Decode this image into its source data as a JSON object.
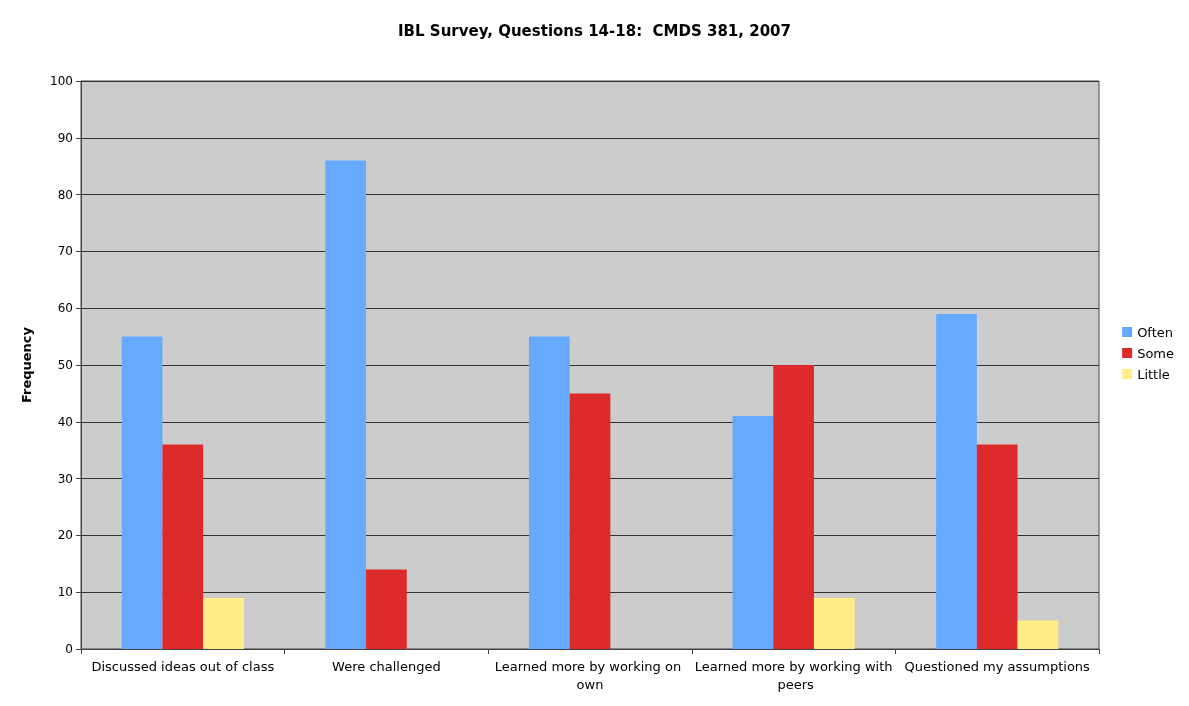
{
  "chart_data": {
    "type": "bar",
    "title": "IBL Survey, Questions 14-18:  CMDS 381, 2007",
    "ylabel": "Frequency",
    "categories": [
      "Discussed ideas out of class",
      "Were challenged",
      "Learned more by working on own",
      "Learned more by working with peers",
      "Questioned my assumptions"
    ],
    "series": [
      {
        "name": "Often",
        "color": "#66aaff",
        "values": [
          55,
          86,
          55,
          41,
          59
        ]
      },
      {
        "name": "Some",
        "color": "#dd2a2a",
        "values": [
          36,
          14,
          45,
          50,
          36
        ]
      },
      {
        "name": "Little",
        "color": "#ffee88",
        "values": [
          9,
          0,
          0,
          9,
          5
        ]
      }
    ],
    "ylim": [
      0,
      100
    ],
    "yticks": [
      0,
      10,
      20,
      30,
      40,
      50,
      60,
      70,
      80,
      90,
      100
    ],
    "grid": "y",
    "legend": "right"
  }
}
